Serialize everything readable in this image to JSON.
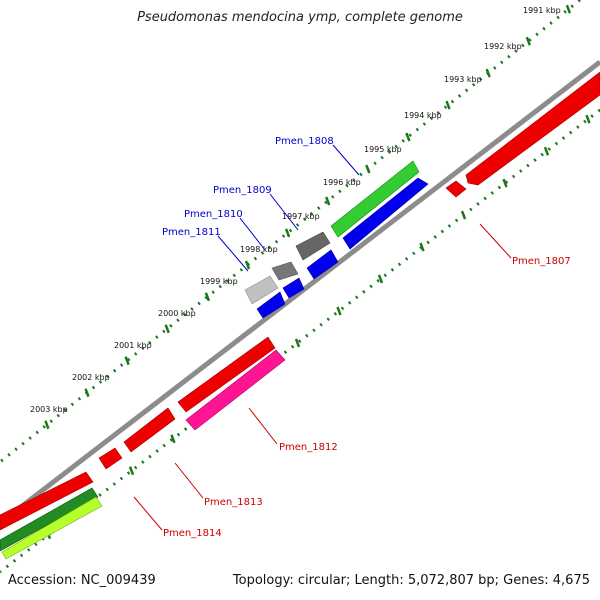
{
  "title": "Pseudomonas mendocina ymp, complete genome",
  "footer": {
    "accession": "Accession: NC_009439",
    "topology": "Topology: circular; Length: 5,072,807 bp; Genes: 4,675"
  },
  "colors": {
    "backbone": "#8c8c8c",
    "ticks": "#1a7a1a",
    "forward_label": "#0000cc",
    "reverse_label": "#cc0000"
  },
  "tick_labels": [
    "1991 kbp",
    "1992 kbp",
    "1993 kbp",
    "1994 kbp",
    "1995 kbp",
    "1996 kbp",
    "1997 kbp",
    "1998 kbp",
    "1999 kbp",
    "2000 kbp",
    "2001 kbp",
    "2002 kbp",
    "2003 kbp"
  ],
  "genes": [
    {
      "name": "Pmen_1807",
      "strand": "reverse",
      "color": "#ff0000"
    },
    {
      "name": "Pmen_1808",
      "strand": "forward",
      "color": "#33cc33"
    },
    {
      "name": "Pmen_1809",
      "strand": "forward",
      "color": "#666666"
    },
    {
      "name": "Pmen_1810",
      "strand": "forward",
      "color": "#777777"
    },
    {
      "name": "Pmen_1811",
      "strand": "forward",
      "color": "#bbbbbb"
    },
    {
      "name": "Pmen_1812",
      "strand": "reverse",
      "color": "#ff1493"
    },
    {
      "name": "Pmen_1813",
      "strand": "reverse",
      "color": "#ff0000"
    },
    {
      "name": "Pmen_1814",
      "strand": "reverse",
      "color": "#228b22"
    }
  ]
}
